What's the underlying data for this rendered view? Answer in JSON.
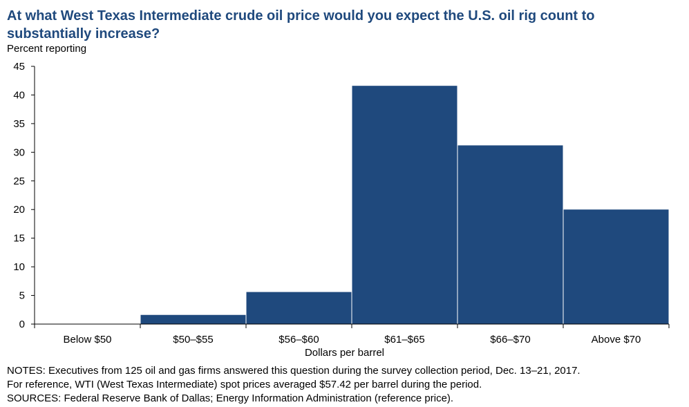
{
  "chart_data": {
    "type": "bar",
    "title": "At what West Texas Intermediate crude oil price would you expect the U.S. oil rig count to substantially increase?",
    "ylabel": "Percent reporting",
    "xlabel": "Dollars  per barrel",
    "categories": [
      "Below $50",
      "$50–$55",
      "$56–$60",
      "$61–$65",
      "$66–$70",
      "Above $70"
    ],
    "values": [
      0,
      1.6,
      5.6,
      41.6,
      31.2,
      20
    ],
    "ylim": [
      0,
      45
    ],
    "yticks": [
      0,
      5,
      10,
      15,
      20,
      25,
      30,
      35,
      40,
      45
    ],
    "bar_color": "#1f497d",
    "grid": false,
    "legend": "none"
  },
  "notes": [
    "NOTES:  Executives  from  125  oil  and  gas  firms  answered  this  question  during  the  survey  collection  period,  Dec.  13–21,  2017.",
    "For  reference,  WTI  (West  Texas  Intermediate)  spot  prices  averaged  $57.42  per  barrel  during  the  period.",
    "SOURCES:  Federal  Reserve  Bank  of  Dallas;  Energy  Information  Administration  (reference price)."
  ]
}
